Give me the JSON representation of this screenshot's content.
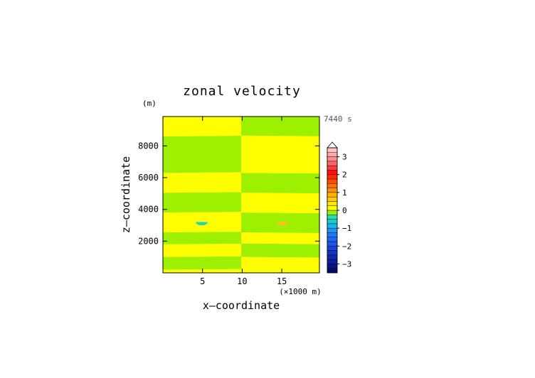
{
  "chart_data": {
    "type": "heatmap",
    "title": "zonal velocity",
    "xlabel": "x—coordinate",
    "ylabel": "z—coordinate",
    "x_unit": "(×1000 m)",
    "y_unit": "(m)",
    "time_label": "7440 s",
    "xlim": [
      0,
      19.75
    ],
    "ylim": [
      0,
      9850
    ],
    "x_ticks": [
      5,
      10,
      15
    ],
    "y_ticks": [
      2000,
      4000,
      6000,
      8000
    ],
    "x_tick_labels": [
      "5",
      "10",
      "15"
    ],
    "y_tick_labels": [
      "2000",
      "4000",
      "6000",
      "8000"
    ],
    "colorbar": {
      "ticks": [
        -3,
        -2,
        -1,
        0,
        1,
        2,
        3
      ],
      "tick_labels": [
        "−3",
        "−2",
        "−1",
        "0",
        "1",
        "2",
        "3"
      ],
      "range": [
        -3.5,
        3.5
      ],
      "step": 0.25,
      "levels": [
        {
          "lo": -3.5,
          "hi": -3.25,
          "color": "#0a0a6e"
        },
        {
          "lo": -3.25,
          "hi": -3.0,
          "color": "#0c1484"
        },
        {
          "lo": -3.0,
          "hi": -2.75,
          "color": "#0e1e99"
        },
        {
          "lo": -2.75,
          "hi": -2.5,
          "color": "#1028ad"
        },
        {
          "lo": -2.5,
          "hi": -2.25,
          "color": "#1434c4"
        },
        {
          "lo": -2.25,
          "hi": -2.0,
          "color": "#1844d6"
        },
        {
          "lo": -2.0,
          "hi": -1.75,
          "color": "#1a55e6"
        },
        {
          "lo": -1.75,
          "hi": -1.5,
          "color": "#1a66f0"
        },
        {
          "lo": -1.5,
          "hi": -1.25,
          "color": "#1a7cf5"
        },
        {
          "lo": -1.25,
          "hi": -1.0,
          "color": "#1a96f2"
        },
        {
          "lo": -1.0,
          "hi": -0.75,
          "color": "#19b4ea"
        },
        {
          "lo": -0.75,
          "hi": -0.5,
          "color": "#18ccd4"
        },
        {
          "lo": -0.5,
          "hi": -0.25,
          "color": "#2ae0a8"
        },
        {
          "lo": -0.25,
          "hi": 0.0,
          "color": "#9cf000"
        },
        {
          "lo": 0.0,
          "hi": 0.25,
          "color": "#ffff00"
        },
        {
          "lo": 0.25,
          "hi": 0.5,
          "color": "#ffe800"
        },
        {
          "lo": 0.5,
          "hi": 0.75,
          "color": "#ffcc00"
        },
        {
          "lo": 0.75,
          "hi": 1.0,
          "color": "#ffb000"
        },
        {
          "lo": 1.0,
          "hi": 1.25,
          "color": "#ff9000"
        },
        {
          "lo": 1.25,
          "hi": 1.5,
          "color": "#ff7000"
        },
        {
          "lo": 1.5,
          "hi": 1.75,
          "color": "#ff4c00"
        },
        {
          "lo": 1.75,
          "hi": 2.0,
          "color": "#ff2800"
        },
        {
          "lo": 2.0,
          "hi": 2.25,
          "color": "#ff1010"
        },
        {
          "lo": 2.25,
          "hi": 2.5,
          "color": "#ff3c3c"
        },
        {
          "lo": 2.5,
          "hi": 2.75,
          "color": "#ff6464"
        },
        {
          "lo": 2.75,
          "hi": 3.0,
          "color": "#ff8c8c"
        },
        {
          "lo": 3.0,
          "hi": 3.25,
          "color": "#ffaaaa"
        },
        {
          "lo": 3.25,
          "hi": 3.5,
          "color": "#ffc4c4"
        }
      ]
    },
    "field_colors": {
      "positive": "#ffff00",
      "negative": "#9cf000",
      "neg_blob": "#22d8b4",
      "pos_blob": "#ffc020"
    },
    "left_half_bands": [
      {
        "z0": 0,
        "z1": 200,
        "sign": "positive"
      },
      {
        "z0": 200,
        "z1": 1000,
        "sign": "negative"
      },
      {
        "z0": 1000,
        "z1": 1800,
        "sign": "positive"
      },
      {
        "z0": 1800,
        "z1": 2550,
        "sign": "negative"
      },
      {
        "z0": 2550,
        "z1": 3800,
        "sign": "positive"
      },
      {
        "z0": 3800,
        "z1": 5050,
        "sign": "negative"
      },
      {
        "z0": 5050,
        "z1": 6300,
        "sign": "positive"
      },
      {
        "z0": 6300,
        "z1": 8600,
        "sign": "negative"
      },
      {
        "z0": 8600,
        "z1": 9850,
        "sign": "positive"
      }
    ],
    "right_half_bands": [
      {
        "z0": 0,
        "z1": 1000,
        "sign": "positive"
      },
      {
        "z0": 1000,
        "z1": 1850,
        "sign": "negative"
      },
      {
        "z0": 1850,
        "z1": 2550,
        "sign": "positive"
      },
      {
        "z0": 2550,
        "z1": 3800,
        "sign": "negative"
      },
      {
        "z0": 3800,
        "z1": 5050,
        "sign": "positive"
      },
      {
        "z0": 5050,
        "z1": 6300,
        "sign": "negative"
      },
      {
        "z0": 6300,
        "z1": 8650,
        "sign": "positive"
      },
      {
        "z0": 8650,
        "z1": 9850,
        "sign": "negative"
      }
    ],
    "blobs": [
      {
        "x": 4.9,
        "z": 3200,
        "rx": 0.75,
        "rz": 130,
        "color_key": "neg_blob"
      },
      {
        "x": 15.1,
        "z": 3200,
        "rx": 0.75,
        "rz": 130,
        "color_key": "pos_blob"
      }
    ],
    "grid": false,
    "legend": "right"
  }
}
